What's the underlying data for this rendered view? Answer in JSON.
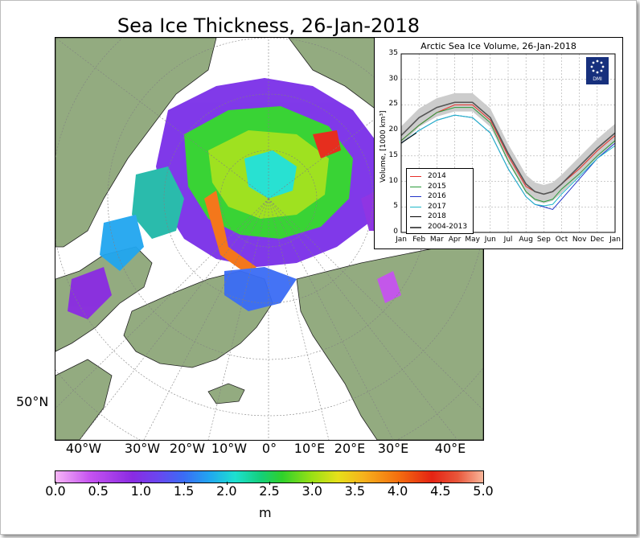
{
  "title": "Sea Ice Thickness, 26-Jan-2018",
  "map": {
    "lat_label": "50°N",
    "lon_labels": [
      "40°W",
      "30°W",
      "20°W",
      "10°W",
      "0°",
      "10°E",
      "20°E",
      "30°E",
      "40°E"
    ],
    "colorbar": {
      "ticks": [
        "0.0",
        "0.5",
        "1.0",
        "1.5",
        "2.0",
        "2.5",
        "3.0",
        "3.5",
        "4.0",
        "4.5",
        "5.0"
      ],
      "unit": "m",
      "range": [
        0,
        5
      ]
    },
    "colors": {
      "land": "#93ab80",
      "ocean": "#ffffff",
      "grid": "#808080"
    }
  },
  "inset": {
    "title": "Arctic Sea Ice Volume, 26-Jan-2018",
    "ylabel": "Volume, [1000 km³]",
    "logo_text": "DMI"
  },
  "chart_data": {
    "type": "line",
    "title": "Arctic Sea Ice Volume, 26-Jan-2018",
    "xlabel": "",
    "ylabel": "Volume, [1000 km³]",
    "categories": [
      "Jan",
      "Feb",
      "Mar",
      "Apr",
      "May",
      "Jun",
      "Jul",
      "Aug",
      "Sep",
      "Oct",
      "Nov",
      "Dec",
      "Jan"
    ],
    "ylim": [
      0,
      35
    ],
    "yticks": [
      0,
      5,
      10,
      15,
      20,
      25,
      30,
      35
    ],
    "grid": true,
    "legend_position": "bottom-left",
    "series": [
      {
        "name": "2014",
        "color": "#e8302a",
        "x": [
          0,
          1,
          2,
          3,
          4,
          5,
          6,
          7,
          7.5,
          8,
          8.5,
          9,
          10,
          11,
          12
        ],
        "y": [
          18,
          21,
          23.5,
          25,
          25,
          22,
          15,
          9,
          8,
          7.5,
          8,
          9.5,
          12.5,
          16,
          19
        ]
      },
      {
        "name": "2015",
        "color": "#2a9a3a",
        "x": [
          0,
          1,
          2,
          3,
          4,
          5,
          6,
          7,
          7.5,
          8,
          8.5,
          9,
          10,
          11,
          12
        ],
        "y": [
          18,
          21,
          23.5,
          24.5,
          24.5,
          21.5,
          14,
          8,
          6.5,
          6,
          6.5,
          8.5,
          11.5,
          15,
          18
        ]
      },
      {
        "name": "2016",
        "color": "#2134c8",
        "x": [
          0,
          1,
          2,
          3,
          4,
          5,
          6,
          7,
          7.5,
          8,
          8.5,
          9,
          10,
          11,
          12
        ],
        "y": [
          17.5,
          20,
          22,
          23,
          22.5,
          19.5,
          12.5,
          7,
          5.5,
          5,
          4.5,
          6.5,
          10.5,
          14.5,
          17.5
        ]
      },
      {
        "name": "2017",
        "color": "#1fb8c8",
        "x": [
          0,
          1,
          2,
          3,
          4,
          5,
          6,
          7,
          7.5,
          8,
          8.5,
          9,
          10,
          11,
          12
        ],
        "y": [
          17.5,
          20,
          22,
          23,
          22.5,
          19.5,
          12.5,
          7,
          5.5,
          5.2,
          5.5,
          7.5,
          11,
          14.5,
          17
        ]
      },
      {
        "name": "2018",
        "color": "#000000",
        "x": [
          0,
          0.85
        ],
        "y": [
          17.5,
          19.5
        ]
      },
      {
        "name": "2004-2013",
        "color": "#555555",
        "x": [
          0,
          1,
          2,
          3,
          4,
          5,
          6,
          7,
          7.5,
          8,
          8.5,
          9,
          10,
          11,
          12
        ],
        "y": [
          19,
          22.5,
          24.5,
          25.5,
          25.5,
          22.5,
          15.5,
          9.5,
          8,
          7.5,
          8,
          9.5,
          13,
          16.5,
          19.5
        ],
        "band": 1.8
      }
    ]
  }
}
